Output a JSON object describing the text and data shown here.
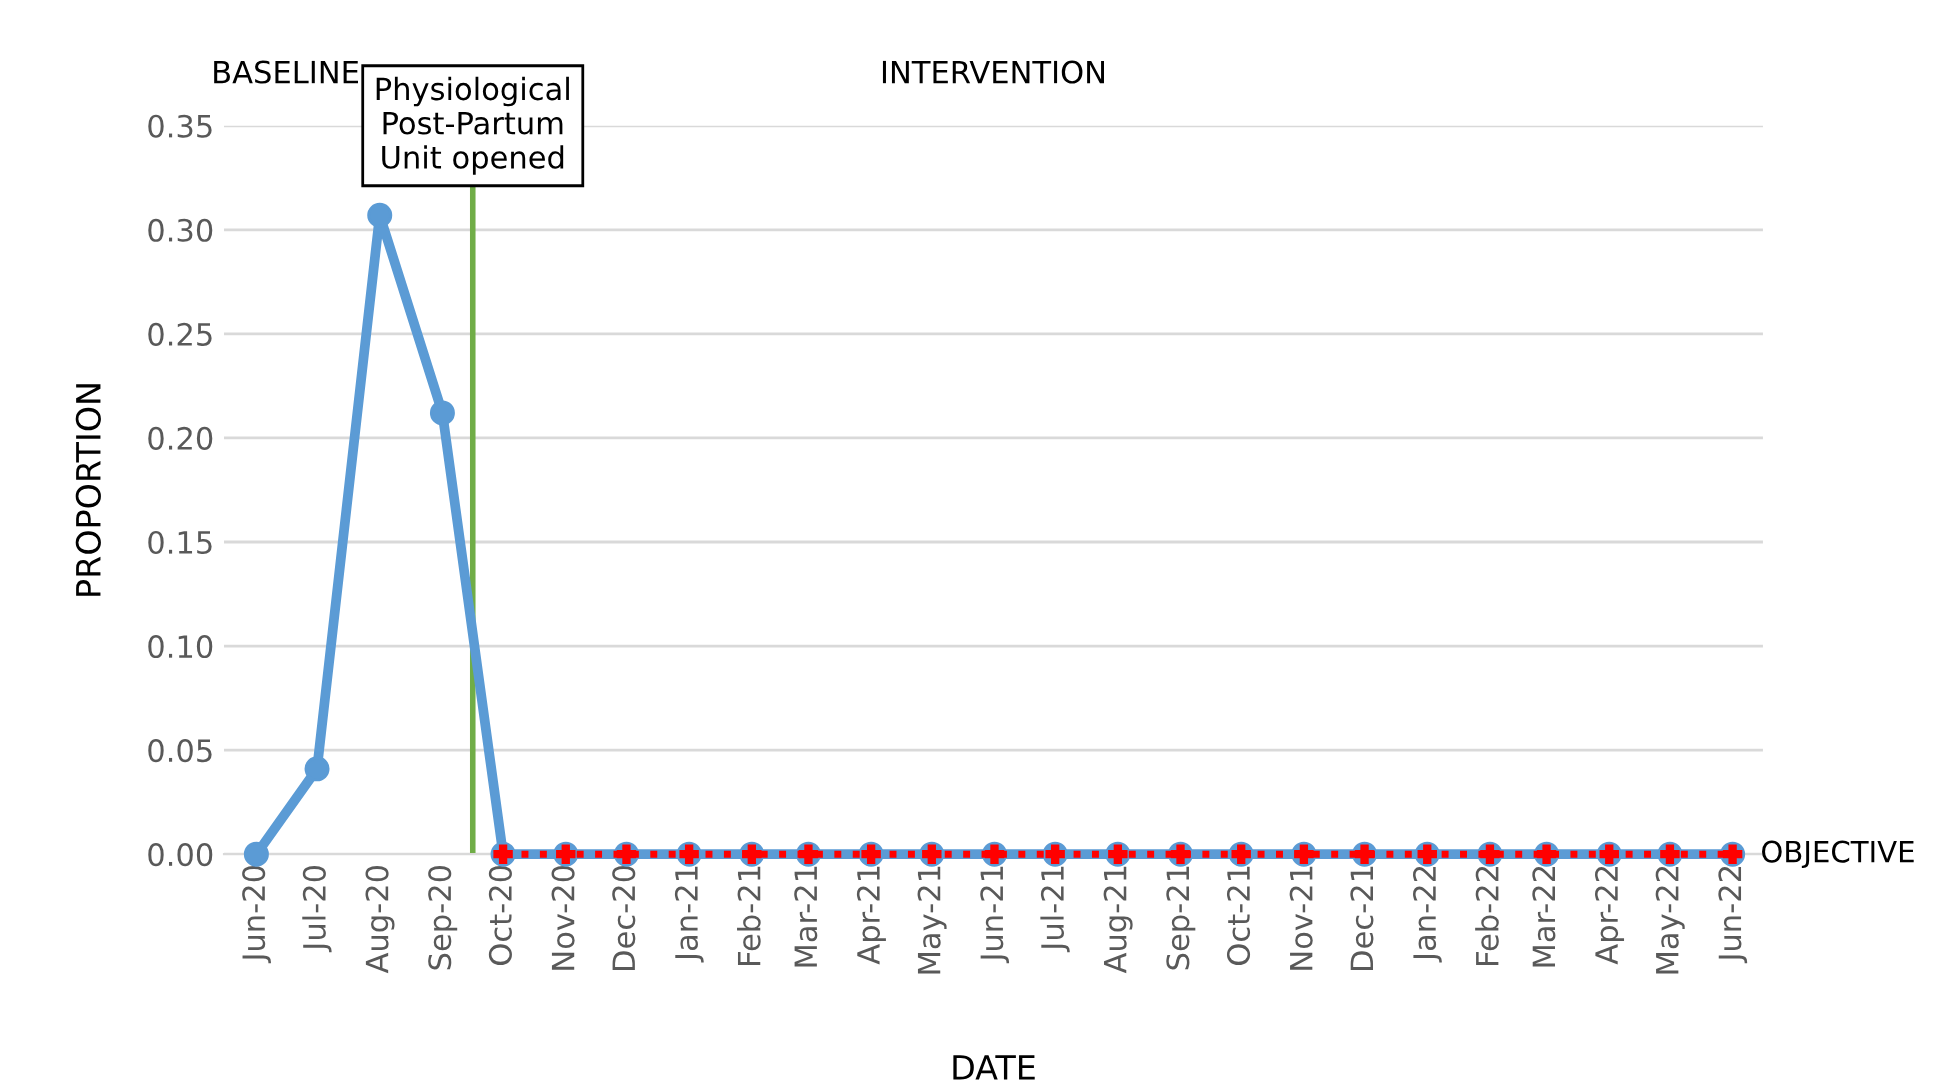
{
  "chart_data": {
    "type": "line",
    "xlabel": "DATE",
    "ylabel": "PROPORTION",
    "x": [
      "2020-06",
      "2020-07",
      "2020-08",
      "2020-09",
      "2020-10",
      "2020-11",
      "2020-12",
      "2021-01",
      "2021-02",
      "2021-03",
      "2021-04",
      "2021-05",
      "2021-06",
      "2021-07",
      "2021-08",
      "2021-09",
      "2021-10",
      "2021-11",
      "2021-12",
      "2022-01",
      "2022-02",
      "2022-03",
      "2022-04",
      "2022-05",
      "2022-06"
    ],
    "series": [
      {
        "color": "#5b9bd5",
        "marker": "circle",
        "line_style": "solid",
        "values": [
          0,
          0.041,
          0.307,
          0.212,
          0,
          0,
          0,
          0,
          0,
          0,
          0,
          0,
          0,
          0,
          0,
          0,
          0,
          0,
          0,
          0,
          0,
          0,
          0,
          0,
          0
        ]
      },
      {
        "name": "OBJECTIVE",
        "color": "#ff0000",
        "marker": "cross",
        "line_style": "dotted",
        "values": [
          null,
          null,
          null,
          null,
          0,
          0,
          0,
          0,
          0,
          0,
          0,
          0,
          0,
          0,
          0,
          0,
          0,
          0,
          0,
          0,
          0,
          0,
          0,
          0,
          0
        ]
      }
    ],
    "xlim": [
      "2020-05-16",
      "2022-06-16"
    ],
    "xticks": [
      {
        "value": "2020-06",
        "label": "Jun-20"
      },
      {
        "value": "2020-07",
        "label": "Jul-20"
      },
      {
        "value": "2020-08",
        "label": "Aug-20"
      },
      {
        "value": "2020-09",
        "label": "Sep-20"
      },
      {
        "value": "2020-10",
        "label": "Oct-20"
      },
      {
        "value": "2020-11",
        "label": "Nov-20"
      },
      {
        "value": "2020-12",
        "label": "Dec-20"
      },
      {
        "value": "2021-01",
        "label": "Jan-21"
      },
      {
        "value": "2021-02",
        "label": "Feb-21"
      },
      {
        "value": "2021-03",
        "label": "Mar-21"
      },
      {
        "value": "2021-04",
        "label": "Apr-21"
      },
      {
        "value": "2021-05",
        "label": "May-21"
      },
      {
        "value": "2021-06",
        "label": "Jun-21"
      },
      {
        "value": "2021-07",
        "label": "Jul-21"
      },
      {
        "value": "2021-08",
        "label": "Aug-21"
      },
      {
        "value": "2021-09",
        "label": "Sep-21"
      },
      {
        "value": "2021-10",
        "label": "Oct-21"
      },
      {
        "value": "2021-11",
        "label": "Nov-21"
      },
      {
        "value": "2021-12",
        "label": "Dec-21"
      },
      {
        "value": "2022-01",
        "label": "Jan-22"
      },
      {
        "value": "2022-02",
        "label": "Feb-22"
      },
      {
        "value": "2022-03",
        "label": "Mar-22"
      },
      {
        "value": "2022-04",
        "label": "Apr-22"
      },
      {
        "value": "2022-05",
        "label": "May-22"
      },
      {
        "value": "2022-06",
        "label": "Jun-22"
      }
    ],
    "ylim": [
      0,
      0.35
    ],
    "yticks": [
      {
        "value": 0,
        "label": "0.00"
      },
      {
        "value": 0.05,
        "label": "0.05"
      },
      {
        "value": 0.1,
        "label": "0.10"
      },
      {
        "value": 0.15,
        "label": "0.15"
      },
      {
        "value": 0.2,
        "label": "0.20"
      },
      {
        "value": 0.25,
        "label": "0.25"
      },
      {
        "value": 0.3,
        "label": "0.30"
      },
      {
        "value": 0.35,
        "label": "0.35"
      }
    ],
    "grid": "y",
    "ref_lines": [
      {
        "axis": "x",
        "value": "2020-09-16",
        "label": "Physiological\nPost-Partum\nUnit opened",
        "color": "#70ad47",
        "line_style": "solid"
      }
    ],
    "annotations": [
      "BASELINE",
      "INTERVENTION"
    ]
  }
}
